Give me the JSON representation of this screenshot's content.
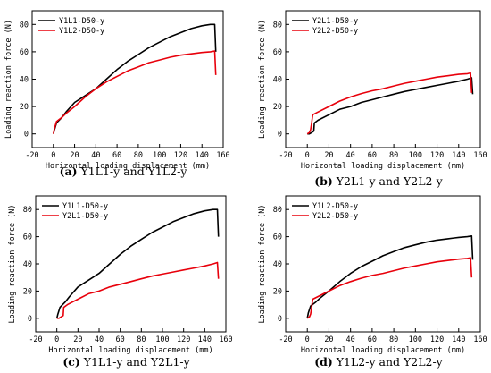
{
  "panels": [
    {
      "caption_tag": "(a)",
      "caption_text": " Y1L1-y and Y1L2-y",
      "chart_data": {
        "type": "line",
        "xlabel": "Horizontal loading displacement (mm)",
        "ylabel": "Loading reaction force (N)",
        "xlim": [
          -20,
          160
        ],
        "ylim": [
          -10,
          90
        ],
        "xticks": [
          -20,
          0,
          20,
          40,
          60,
          80,
          100,
          120,
          140,
          160
        ],
        "yticks": [
          0,
          20,
          40,
          60,
          80
        ],
        "legend": "top-left",
        "series": [
          {
            "name": "Y1L1-D50-y",
            "color": "#000000",
            "x": [
              0,
              1,
              3,
              8,
              12,
              20,
              30,
              40,
              50,
              60,
              70,
              80,
              90,
              100,
              110,
              120,
              130,
              140,
              148,
              152,
              153
            ],
            "y": [
              0,
              3,
              8,
              12,
              16,
              23,
              28,
              33,
              40,
              47,
              53,
              58,
              63,
              67,
              71,
              74,
              77,
              79,
              80,
              80,
              60
            ]
          },
          {
            "name": "Y1L2-D50-y",
            "color": "#e8000b",
            "x": [
              0,
              1,
              3,
              8,
              12,
              20,
              30,
              40,
              50,
              60,
              70,
              80,
              90,
              100,
              110,
              120,
              130,
              140,
              148,
              152,
              153
            ],
            "y": [
              0,
              4,
              9,
              12,
              15,
              20,
              27,
              33,
              38,
              42,
              46,
              49,
              52,
              54,
              56,
              57.5,
              58.5,
              59.5,
              60,
              60.5,
              43
            ]
          }
        ]
      }
    },
    {
      "caption_tag": "(b)",
      "caption_text": " Y2L1-y and Y2L2-y",
      "chart_data": {
        "type": "line",
        "xlabel": "Horizontal loading displacement (mm)",
        "ylabel": "Loading reaction force (N)",
        "xlim": [
          -20,
          160
        ],
        "ylim": [
          -10,
          90
        ],
        "xticks": [
          -20,
          0,
          20,
          40,
          60,
          80,
          100,
          120,
          140,
          160
        ],
        "yticks": [
          0,
          20,
          40,
          60,
          80
        ],
        "legend": "top-left",
        "series": [
          {
            "name": "Y2L1-D50-y",
            "color": "#000000",
            "x": [
              0,
              2,
              4,
              6,
              6.5,
              10,
              20,
              30,
              40,
              50,
              60,
              70,
              80,
              90,
              100,
              110,
              120,
              130,
              140,
              148,
              152,
              153
            ],
            "y": [
              0,
              0,
              1,
              2,
              8,
              10,
              14,
              18,
              20,
              23,
              25,
              27,
              29,
              31,
              32.5,
              34,
              35.5,
              37,
              38.5,
              40,
              41,
              29
            ]
          },
          {
            "name": "Y2L2-D50-y",
            "color": "#e8000b",
            "x": [
              0,
              2,
              3,
              4,
              5,
              10,
              20,
              30,
              40,
              50,
              60,
              70,
              80,
              90,
              100,
              110,
              120,
              130,
              140,
              148,
              151,
              152
            ],
            "y": [
              0,
              1,
              3,
              8,
              14,
              16,
              20,
              24,
              27,
              29.5,
              31.5,
              33,
              35,
              37,
              38.5,
              40,
              41.5,
              42.5,
              43.5,
              44,
              44.5,
              30
            ]
          }
        ]
      }
    },
    {
      "caption_tag": "(c)",
      "caption_text": " Y1L1-y and Y2L1-y",
      "chart_data": {
        "type": "line",
        "xlabel": "Horizontal loading displacement (mm)",
        "ylabel": "Loading reaction force (N)",
        "xlim": [
          -20,
          160
        ],
        "ylim": [
          -10,
          90
        ],
        "xticks": [
          -20,
          0,
          20,
          40,
          60,
          80,
          100,
          120,
          140,
          160
        ],
        "yticks": [
          0,
          20,
          40,
          60,
          80
        ],
        "legend": "top-left",
        "series": [
          {
            "name": "Y1L1-D50-y",
            "color": "#000000",
            "x": [
              0,
              1,
              3,
              8,
              12,
              20,
              30,
              40,
              50,
              60,
              70,
              80,
              90,
              100,
              110,
              120,
              130,
              140,
              148,
              152,
              153
            ],
            "y": [
              0,
              3,
              8,
              12,
              16,
              23,
              28,
              33,
              40,
              47,
              53,
              58,
              63,
              67,
              71,
              74,
              77,
              79,
              80,
              80,
              60
            ]
          },
          {
            "name": "Y2L1-D50-y",
            "color": "#e8000b",
            "x": [
              0,
              2,
              4,
              6,
              6.5,
              10,
              20,
              30,
              40,
              50,
              60,
              70,
              80,
              90,
              100,
              110,
              120,
              130,
              140,
              148,
              152,
              153
            ],
            "y": [
              0,
              0,
              1,
              2,
              8,
              10,
              14,
              18,
              20,
              23,
              25,
              27,
              29,
              31,
              32.5,
              34,
              35.5,
              37,
              38.5,
              40,
              41,
              29
            ]
          }
        ]
      }
    },
    {
      "caption_tag": "(d)",
      "caption_text": " Y1L2-y and Y2L2-y",
      "chart_data": {
        "type": "line",
        "xlabel": "Horizontal loading displacement (mm)",
        "ylabel": "Loading reaction force (N)",
        "xlim": [
          -20,
          160
        ],
        "ylim": [
          -10,
          90
        ],
        "xticks": [
          -20,
          0,
          20,
          40,
          60,
          80,
          100,
          120,
          140,
          160
        ],
        "yticks": [
          0,
          20,
          40,
          60,
          80
        ],
        "legend": "top-left",
        "series": [
          {
            "name": "Y1L2-D50-y",
            "color": "#000000",
            "x": [
              0,
              1,
              3,
              8,
              12,
              20,
              30,
              40,
              50,
              60,
              70,
              80,
              90,
              100,
              110,
              120,
              130,
              140,
              148,
              152,
              153
            ],
            "y": [
              0,
              4,
              9,
              12,
              15,
              20,
              27,
              33,
              38,
              42,
              46,
              49,
              52,
              54,
              56,
              57.5,
              58.5,
              59.5,
              60,
              60.5,
              43
            ]
          },
          {
            "name": "Y2L2-D50-y",
            "color": "#e8000b",
            "x": [
              0,
              2,
              3,
              4,
              5,
              10,
              20,
              30,
              40,
              50,
              60,
              70,
              80,
              90,
              100,
              110,
              120,
              130,
              140,
              148,
              151,
              152
            ],
            "y": [
              0,
              1,
              3,
              8,
              14,
              16,
              20,
              24,
              27,
              29.5,
              31.5,
              33,
              35,
              37,
              38.5,
              40,
              41.5,
              42.5,
              43.5,
              44,
              44.5,
              30
            ]
          }
        ]
      }
    }
  ]
}
